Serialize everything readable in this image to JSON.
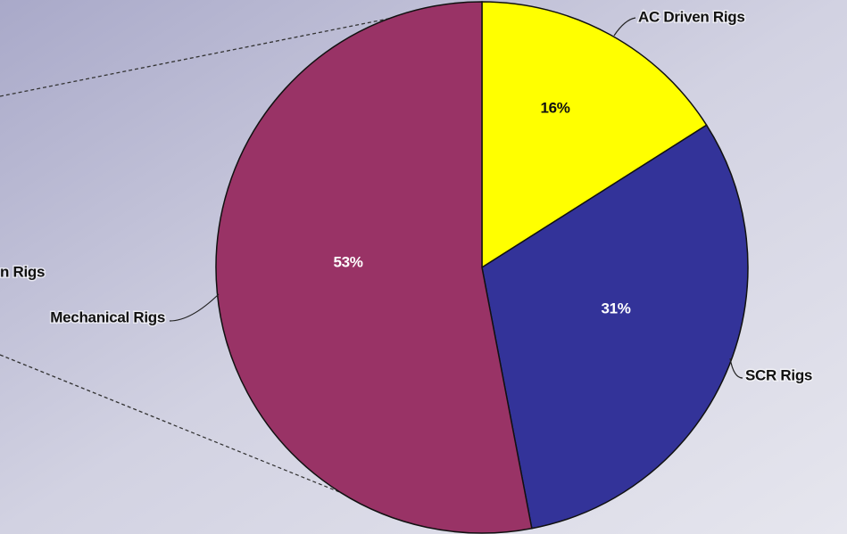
{
  "chart_data": {
    "type": "pie",
    "categories": [
      "AC Driven Rigs",
      "SCR Rigs",
      "Mechanical Rigs"
    ],
    "values": [
      16,
      31,
      53
    ],
    "value_labels": [
      "16%",
      "31%",
      "53%"
    ],
    "colors": [
      "#ffff00",
      "#333399",
      "#993366"
    ],
    "annotations": [
      "n Rigs"
    ]
  }
}
